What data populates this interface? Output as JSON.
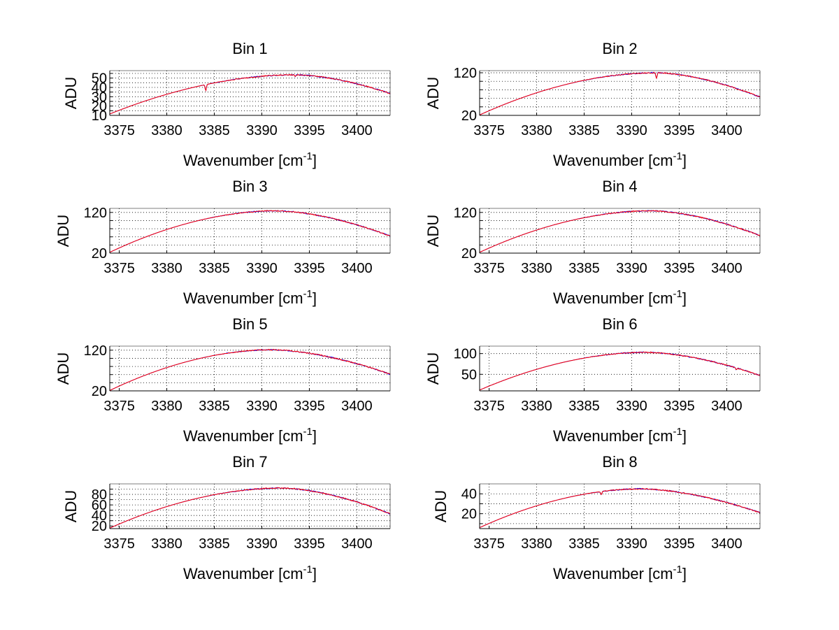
{
  "figure": {
    "background": "#ffffff",
    "series_colors": [
      "#0000ff",
      "#ff0000"
    ]
  },
  "chart_data": [
    {
      "type": "line",
      "title": "Bin 1",
      "xlabel": "Wavenumber [cm-1]",
      "ylabel": "ADU",
      "xlim": [
        3374,
        3403.5
      ],
      "ylim": [
        10,
        58
      ],
      "xticks": [
        3375,
        3380,
        3385,
        3390,
        3395,
        3400
      ],
      "yticks": [
        10,
        15,
        20,
        25,
        30,
        35,
        40,
        45,
        50,
        55
      ],
      "ytick_labels": [
        "10",
        "",
        "20",
        "",
        "30",
        "",
        "40",
        "",
        "50",
        ""
      ],
      "grid": true,
      "shape": {
        "peak_x": 3393.5,
        "peak_y": 53.5,
        "start_y": 11.5,
        "end_y": 33.5,
        "dips": [
          {
            "x": 3384.1,
            "depth": 6.5
          },
          {
            "x": 3393.5,
            "depth": 2
          }
        ]
      }
    },
    {
      "type": "line",
      "title": "Bin 2",
      "xlabel": "Wavenumber [cm-1]",
      "ylabel": "ADU",
      "xlim": [
        3374,
        3403.5
      ],
      "ylim": [
        20,
        125
      ],
      "xticks": [
        3375,
        3380,
        3385,
        3390,
        3395,
        3400
      ],
      "yticks": [
        20,
        40,
        60,
        80,
        100,
        120
      ],
      "ytick_labels": [
        "20",
        "",
        "",
        "",
        "",
        "120"
      ],
      "grid": true,
      "shape": {
        "peak_x": 3392.5,
        "peak_y": 120,
        "start_y": 21,
        "end_y": 63,
        "dips": [
          {
            "x": 3392.6,
            "depth": 14
          }
        ]
      }
    },
    {
      "type": "line",
      "title": "Bin 3",
      "xlabel": "Wavenumber [cm-1]",
      "ylabel": "ADU",
      "xlim": [
        3374,
        3403.5
      ],
      "ylim": [
        20,
        130
      ],
      "xticks": [
        3375,
        3380,
        3385,
        3390,
        3395,
        3400
      ],
      "yticks": [
        20,
        40,
        60,
        80,
        100,
        120
      ],
      "ytick_labels": [
        "20",
        "",
        "",
        "",
        "",
        "120"
      ],
      "grid": true,
      "shape": {
        "peak_x": 3391.5,
        "peak_y": 124,
        "start_y": 22,
        "end_y": 62,
        "dips": []
      }
    },
    {
      "type": "line",
      "title": "Bin 4",
      "xlabel": "Wavenumber [cm-1]",
      "ylabel": "ADU",
      "xlim": [
        3374,
        3403.5
      ],
      "ylim": [
        20,
        130
      ],
      "xticks": [
        3375,
        3380,
        3385,
        3390,
        3395,
        3400
      ],
      "yticks": [
        20,
        40,
        60,
        80,
        100,
        120
      ],
      "ytick_labels": [
        "20",
        "",
        "",
        "",
        "",
        "120"
      ],
      "grid": true,
      "shape": {
        "peak_x": 3392,
        "peak_y": 124,
        "start_y": 22,
        "end_y": 63,
        "dips": []
      }
    },
    {
      "type": "line",
      "title": "Bin 5",
      "xlabel": "Wavenumber [cm-1]",
      "ylabel": "ADU",
      "xlim": [
        3374,
        3403.5
      ],
      "ylim": [
        20,
        130
      ],
      "xticks": [
        3375,
        3380,
        3385,
        3390,
        3395,
        3400
      ],
      "yticks": [
        20,
        40,
        60,
        80,
        100,
        120
      ],
      "ytick_labels": [
        "20",
        "",
        "",
        "",
        "",
        "120"
      ],
      "grid": true,
      "shape": {
        "peak_x": 3391,
        "peak_y": 121,
        "start_y": 21,
        "end_y": 61,
        "dips": []
      }
    },
    {
      "type": "line",
      "title": "Bin 6",
      "xlabel": "Wavenumber [cm-1]",
      "ylabel": "ADU",
      "xlim": [
        3374,
        3403.5
      ],
      "ylim": [
        10,
        118
      ],
      "xticks": [
        3375,
        3380,
        3385,
        3390,
        3395,
        3400
      ],
      "yticks": [
        50,
        100
      ],
      "ytick_labels": [
        "50",
        "100"
      ],
      "grid": true,
      "shape": {
        "peak_x": 3391.5,
        "peak_y": 103,
        "start_y": 12,
        "end_y": 47,
        "dips": [
          {
            "x": 3401,
            "depth": 5
          }
        ]
      }
    },
    {
      "type": "line",
      "title": "Bin 7",
      "xlabel": "Wavenumber [cm-1]",
      "ylabel": "ADU",
      "xlim": [
        3374,
        3403.5
      ],
      "ylim": [
        15,
        100
      ],
      "xticks": [
        3375,
        3380,
        3385,
        3390,
        3395,
        3400
      ],
      "yticks": [
        20,
        30,
        40,
        50,
        60,
        70,
        80,
        90
      ],
      "ytick_labels": [
        "20",
        "",
        "40",
        "",
        "60",
        "",
        "80",
        ""
      ],
      "grid": true,
      "shape": {
        "peak_x": 3392,
        "peak_y": 92,
        "start_y": 16,
        "end_y": 43,
        "dips": []
      }
    },
    {
      "type": "line",
      "title": "Bin 8",
      "xlabel": "Wavenumber [cm-1]",
      "ylabel": "ADU",
      "xlim": [
        3374,
        3403.5
      ],
      "ylim": [
        5,
        50
      ],
      "xticks": [
        3375,
        3380,
        3385,
        3390,
        3395,
        3400
      ],
      "yticks": [
        10,
        20,
        30,
        40
      ],
      "ytick_labels": [
        "",
        "20",
        "",
        "40"
      ],
      "grid": true,
      "shape": {
        "peak_x": 3391,
        "peak_y": 45,
        "start_y": 6,
        "end_y": 21,
        "dips": [
          {
            "x": 3386.8,
            "depth": 3
          }
        ]
      }
    }
  ]
}
